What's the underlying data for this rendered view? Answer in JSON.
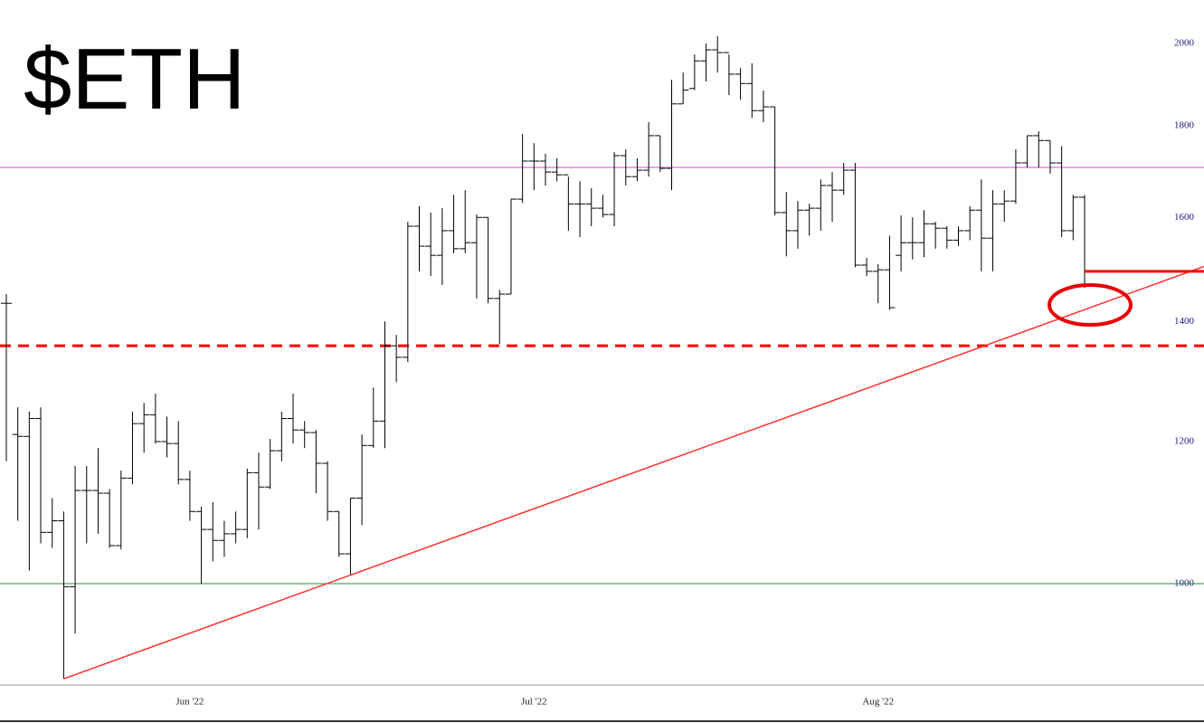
{
  "chart_data": {
    "type": "ohlc",
    "title": "$ETH",
    "color": "#000000",
    "log_scale": true,
    "categories": [
      null,
      null,
      null,
      null,
      null,
      null,
      null,
      null,
      null,
      null,
      null,
      null,
      null,
      null,
      null,
      null,
      "Jun '22",
      null,
      null,
      null,
      null,
      null,
      null,
      null,
      null,
      null,
      null,
      null,
      null,
      null,
      null,
      null,
      null,
      null,
      null,
      null,
      null,
      null,
      null,
      null,
      null,
      null,
      null,
      null,
      null,
      null,
      "Jul '22",
      null,
      null,
      null,
      null,
      null,
      null,
      null,
      null,
      null,
      null,
      null,
      null,
      null,
      null,
      null,
      null,
      null,
      null,
      null,
      null,
      null,
      null,
      null,
      null,
      null,
      null,
      null,
      null,
      null,
      "Aug '22",
      null,
      null,
      null,
      null,
      null,
      null,
      null,
      null,
      null,
      null,
      null,
      null,
      null,
      null,
      null,
      null,
      null,
      null
    ],
    "open": [
      1433,
      1211,
      1208,
      1236,
      1068,
      1084,
      996,
      1127,
      1127,
      1123,
      1050,
      1145,
      1228,
      1242,
      1200,
      1197,
      1143,
      1097,
      1072,
      1057,
      1066,
      1072,
      1153,
      1132,
      1186,
      1236,
      1218,
      1214,
      1167,
      1097,
      1039,
      1116,
      1194,
      1232,
      1357,
      1337,
      1582,
      1542,
      1524,
      1573,
      1537,
      1549,
      1600,
      1442,
      1450,
      1638,
      1720,
      1720,
      1696,
      1690,
      1628,
      1628,
      1619,
      1606,
      1732,
      1686,
      1700,
      1777,
      1704,
      1851,
      1888,
      1956,
      1984,
      1977,
      1923,
      1900,
      1835,
      1844,
      1610,
      1573,
      1615,
      1619,
      1667,
      1657,
      1700,
      1505,
      1493,
      1496,
      1524,
      1549,
      1549,
      1587,
      1578,
      1554,
      1573,
      1615,
      1558,
      1628,
      1634,
      1716,
      1777,
      1766,
      1716,
      1573,
      1642
    ],
    "high": [
      1450,
      1254,
      1247,
      1254,
      1116,
      1097,
      1163,
      1163,
      1190,
      1129,
      1156,
      1247,
      1261,
      1276,
      1239,
      1232,
      1156,
      1104,
      1110,
      1084,
      1097,
      1159,
      1183,
      1204,
      1247,
      1276,
      1232,
      1218,
      1170,
      1097,
      1116,
      1211,
      1286,
      1400,
      1376,
      1591,
      1623,
      1610,
      1619,
      1647,
      1657,
      1606,
      1600,
      1458,
      1638,
      1781,
      1760,
      1736,
      1726,
      1686,
      1676,
      1661,
      1647,
      1740,
      1746,
      1726,
      1808,
      1777,
      1909,
      1927,
      1972,
      2000,
      2019,
      1972,
      1938,
      1950,
      1883,
      1844,
      1653,
      1634,
      1628,
      1680,
      1696,
      1716,
      1716,
      1519,
      1507,
      1563,
      1604,
      1600,
      1615,
      1591,
      1582,
      1582,
      1623,
      1680,
      1657,
      1657,
      1746,
      1777,
      1787,
      1766,
      1753,
      1647,
      1647
    ],
    "low": [
      1170,
      1084,
      1017,
      1053,
      1047,
      885,
      938,
      1053,
      1066,
      1047,
      1045,
      1136,
      1183,
      1197,
      1176,
      1136,
      1084,
      1000,
      1029,
      1035,
      1053,
      1060,
      1072,
      1129,
      1170,
      1197,
      1190,
      1123,
      1084,
      1035,
      1011,
      1078,
      1190,
      1190,
      1295,
      1329,
      1493,
      1484,
      1467,
      1528,
      1528,
      1442,
      1433,
      1360,
      1450,
      1630,
      1657,
      1667,
      1676,
      1573,
      1560,
      1582,
      1600,
      1582,
      1667,
      1676,
      1686,
      1696,
      1657,
      1851,
      1884,
      1905,
      1927,
      1872,
      1861,
      1818,
      1808,
      1604,
      1522,
      1537,
      1563,
      1573,
      1591,
      1647,
      1501,
      1484,
      1433,
      1421,
      1493,
      1516,
      1520,
      1537,
      1537,
      1542,
      1554,
      1493,
      1493,
      1591,
      1628,
      1706,
      1706,
      1692,
      1560,
      1554,
      1462
    ],
    "close": [
      1433,
      1208,
      1236,
      1068,
      1084,
      996,
      1127,
      1127,
      1123,
      1050,
      1145,
      1228,
      1242,
      1200,
      1197,
      1143,
      1097,
      1072,
      1057,
      1066,
      1072,
      1153,
      1132,
      1186,
      1236,
      1218,
      1214,
      1167,
      1097,
      1039,
      1116,
      1194,
      1232,
      1357,
      1337,
      1582,
      1542,
      1524,
      1573,
      1537,
      1549,
      1600,
      1442,
      1450,
      1638,
      1720,
      1720,
      1696,
      1690,
      1628,
      1628,
      1619,
      1606,
      1732,
      1686,
      1700,
      1777,
      1704,
      1851,
      1884,
      1956,
      1984,
      1977,
      1923,
      1900,
      1835,
      1844,
      1610,
      1573,
      1615,
      1619,
      1667,
      1657,
      1700,
      1505,
      1493,
      1496,
      1425,
      1549,
      1549,
      1587,
      1578,
      1554,
      1573,
      1615,
      1558,
      1628,
      1634,
      1716,
      1777,
      1766,
      1716,
      1573,
      1642,
      1493
    ],
    "ylim": [
      878,
      2115
    ],
    "yticks": [
      1000,
      1200,
      1400,
      1600,
      1800,
      2000
    ],
    "grid": false,
    "hlines": [
      {
        "value": 1706,
        "color": "#e040e0",
        "dashed": false,
        "width": 1
      },
      {
        "value": 1357,
        "color": "#ff0000",
        "dashed": true,
        "width": 3
      },
      {
        "value": 1000,
        "color": "#2e8b2e",
        "dashed": false,
        "width": 1
      }
    ],
    "trendline": {
      "through": [
        5,
        30
      ],
      "color": "#ff3030"
    },
    "last_close_line": {
      "color": "#ff0000"
    }
  }
}
